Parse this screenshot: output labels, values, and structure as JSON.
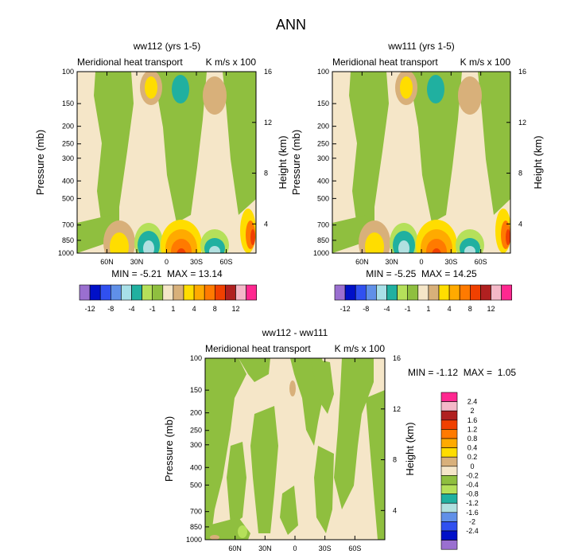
{
  "figure": {
    "title": "ANN",
    "colors": {
      "cream": "#f5e6c8",
      "green": "#8fbf3f",
      "lightgreen": "#b5e05a",
      "teal": "#20b0a0",
      "lightcyan": "#b0e0e0",
      "tan": "#d8b07a",
      "yellow": "#ffdd00",
      "orange": "#ffaa00",
      "darkorange": "#ff7a00",
      "red": "#f04000",
      "brown": "#b02020",
      "pink": "#f4b8c8",
      "magenta": "#ff2890"
    }
  },
  "chart_data": [
    {
      "type": "contour",
      "id": "panel1",
      "title": "ww112 (yrs 1-5)",
      "subtitle_left": "Meridional heat transport",
      "subtitle_right": "K m/s x 100",
      "ylabel": "Pressure (mb)",
      "ylabel_right": "Height (km)",
      "x_ticks": [
        "60N",
        "30N",
        "0",
        "30S",
        "60S"
      ],
      "y_ticks": [
        "100",
        "150",
        "200",
        "250",
        "300",
        "400",
        "500",
        "700",
        "850",
        "1000"
      ],
      "height_ticks": [
        "16",
        "12",
        "8",
        "4"
      ],
      "min": -5.21,
      "max": 13.14,
      "stats_label": "MIN = -5.21  MAX = 13.14",
      "colorbar_labels": [
        "-12",
        "-8",
        "-4",
        "-1",
        "1",
        "4",
        "8",
        "12"
      ]
    },
    {
      "type": "contour",
      "id": "panel2",
      "title": "ww111 (yrs 1-5)",
      "subtitle_left": "Meridional heat transport",
      "subtitle_right": "K m/s x 100",
      "ylabel": "Pressure (mb)",
      "ylabel_right": "Height (km)",
      "x_ticks": [
        "60N",
        "30N",
        "0",
        "30S",
        "60S"
      ],
      "y_ticks": [
        "100",
        "150",
        "200",
        "250",
        "300",
        "400",
        "500",
        "700",
        "850",
        "1000"
      ],
      "height_ticks": [
        "16",
        "12",
        "8",
        "4"
      ],
      "min": -5.25,
      "max": 14.25,
      "stats_label": "MIN = -5.25  MAX = 14.25",
      "colorbar_labels": [
        "-12",
        "-8",
        "-4",
        "-1",
        "1",
        "4",
        "8",
        "12"
      ]
    },
    {
      "type": "contour",
      "id": "panel3",
      "title": "ww112 - ww111",
      "subtitle_left": "Meridional heat transport",
      "subtitle_right": "K m/s x 100",
      "ylabel": "Pressure (mb)",
      "ylabel_right": "Height (km)",
      "x_ticks": [
        "60N",
        "30N",
        "0",
        "30S",
        "60S"
      ],
      "y_ticks": [
        "100",
        "150",
        "200",
        "250",
        "300",
        "400",
        "500",
        "700",
        "850",
        "1000"
      ],
      "height_ticks": [
        "16",
        "12",
        "8",
        "4"
      ],
      "min": -1.12,
      "max": 1.05,
      "stats_label": "MIN = -1.12  MAX =  1.05",
      "colorbar_labels": [
        "2.4",
        "2",
        "1.6",
        "1.2",
        "0.8",
        "0.4",
        "0.2",
        "0",
        "-0.2",
        "-0.4",
        "-0.8",
        "-1.2",
        "-1.6",
        "-2",
        "-2.4"
      ]
    }
  ]
}
